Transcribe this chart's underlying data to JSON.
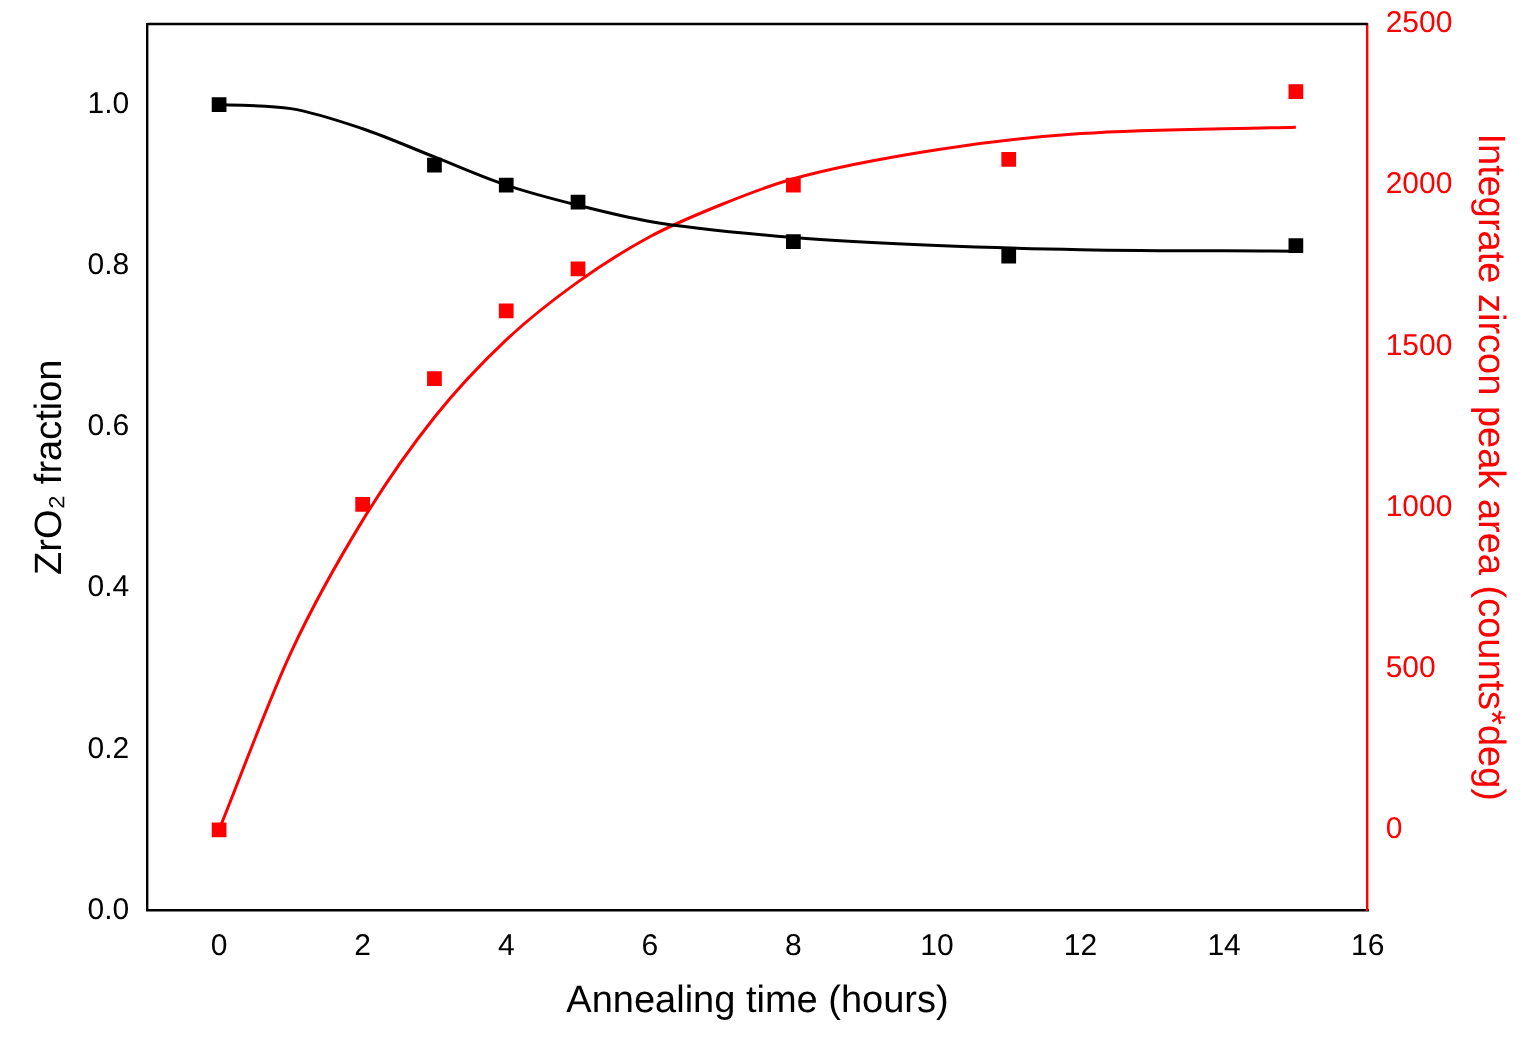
{
  "chart_data": {
    "type": "scatter",
    "xlabel": "Annealing time (hours)",
    "ylabel": "ZrO₂ fraction",
    "y2label": "Integrate zircon peak area (counts*deg)",
    "xlim": [
      -1,
      16
    ],
    "xticks": [
      0,
      2,
      4,
      6,
      8,
      10,
      12,
      14,
      16
    ],
    "ylim": [
      0,
      1.1
    ],
    "yticks": [
      {
        "value": 0,
        "label": "0.0"
      },
      {
        "value": 0.2,
        "label": "0.2"
      },
      {
        "value": 0.4,
        "label": "0.4"
      },
      {
        "value": 0.6,
        "label": "0.6"
      },
      {
        "value": 0.8,
        "label": "0.8"
      },
      {
        "value": 1,
        "label": "1.0"
      }
    ],
    "y2lim": [
      -250,
      2500
    ],
    "y2ticks": [
      0,
      500,
      1000,
      1500,
      2000,
      2500
    ],
    "grid": false,
    "legend": false,
    "series": [
      {
        "marker": "square",
        "color": "#000000",
        "x": [
          0,
          3,
          4,
          5,
          8,
          11,
          15
        ],
        "values": [
          1.0,
          0.925,
          0.9,
          0.879,
          0.83,
          0.812,
          0.825
        ]
      },
      {
        "type": "line",
        "marker": "none",
        "color": "#000000",
        "x": [
          0,
          1,
          2,
          3,
          4,
          5,
          6,
          8,
          10,
          12,
          15
        ],
        "values": [
          1.0,
          0.995,
          0.97,
          0.935,
          0.9,
          0.875,
          0.855,
          0.835,
          0.825,
          0.82,
          0.818
        ]
      },
      {
        "marker": "square",
        "color": "#ff0000",
        "axis": "y2",
        "x": [
          0,
          2,
          3,
          4,
          5,
          8,
          11,
          15
        ],
        "values": [
          0,
          1010,
          1400,
          1610,
          1740,
          2000,
          2080,
          2290
        ]
      },
      {
        "type": "line",
        "marker": "none",
        "color": "#ff0000",
        "axis": "y2",
        "x": [
          0,
          1,
          2,
          3,
          4,
          5,
          6,
          7,
          8,
          10,
          12,
          15
        ],
        "values": [
          0,
          550,
          960,
          1280,
          1520,
          1700,
          1840,
          1940,
          2020,
          2110,
          2160,
          2180
        ]
      }
    ]
  }
}
